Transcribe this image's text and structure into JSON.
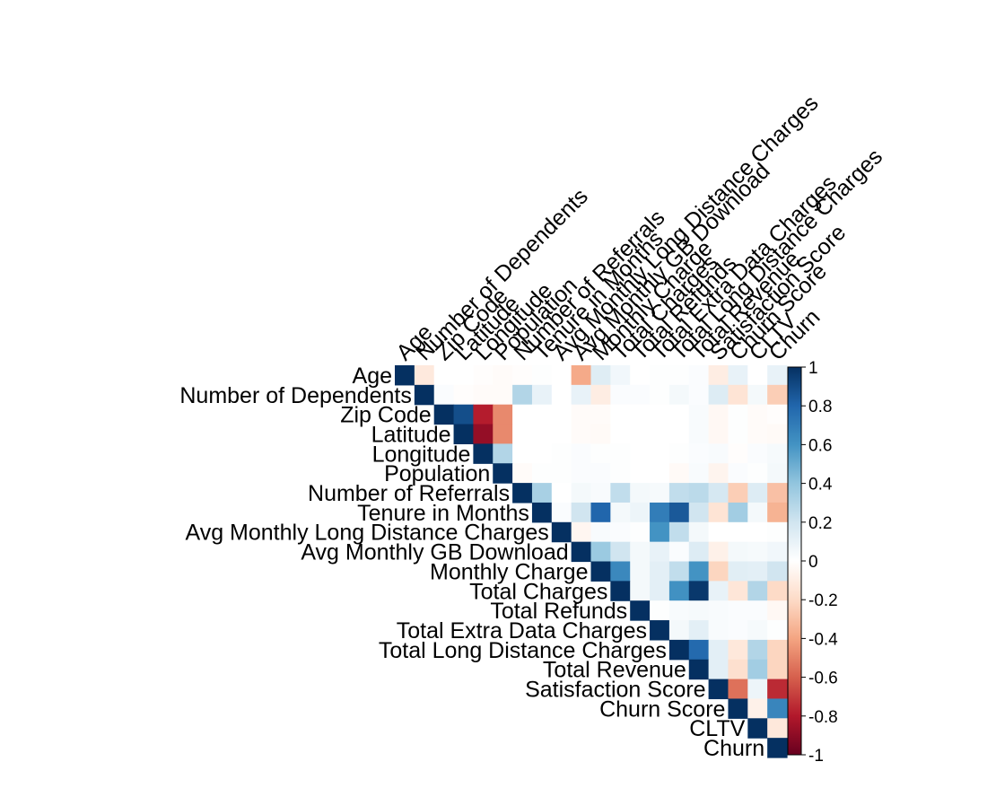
{
  "chart_data": {
    "type": "heatmap",
    "layout": "upper-triangle correlation matrix",
    "labels": [
      "Age",
      "Number of Dependents",
      "Zip Code",
      "Latitude",
      "Longitude",
      "Population",
      "Number of Referrals",
      "Tenure in Months",
      "Avg Monthly Long Distance Charges",
      "Avg Monthly GB Download",
      "Monthly Charge",
      "Total Charges",
      "Total Refunds",
      "Total Extra Data Charges",
      "Total Long Distance Charges",
      "Total Revenue",
      "Satisfaction Score",
      "Churn Score",
      "CLTV",
      "Churn"
    ],
    "matrix": [
      [
        1,
        -0.12,
        0,
        0,
        -0.01,
        -0.02,
        -0.01,
        0.01,
        0,
        -0.38,
        0.14,
        0.06,
        0,
        0.01,
        0.01,
        0.02,
        -0.1,
        0.1,
        0,
        0.1
      ],
      [
        null,
        1,
        0.02,
        -0.01,
        -0.02,
        -0.02,
        0.3,
        0.1,
        0,
        0.1,
        -0.1,
        0.02,
        0.02,
        0.01,
        0.05,
        0.02,
        0.15,
        -0.15,
        0.05,
        -0.25
      ],
      [
        null,
        null,
        1,
        0.89,
        -0.79,
        -0.48,
        0,
        0,
        0,
        -0.02,
        -0.02,
        0,
        0,
        0,
        0,
        0.03,
        -0.04,
        0.01,
        -0.02,
        -0.01
      ],
      [
        null,
        null,
        null,
        1,
        -0.88,
        -0.48,
        0,
        0,
        0,
        -0.02,
        -0.03,
        0,
        0,
        0,
        0,
        0.03,
        -0.04,
        0.01,
        -0.02,
        -0.03
      ],
      [
        null,
        null,
        null,
        null,
        1,
        0.3,
        0,
        0,
        0.01,
        0.02,
        0.01,
        0.01,
        0,
        0,
        0.01,
        0.02,
        0.03,
        -0.01,
        0.02,
        0.04
      ],
      [
        null,
        null,
        null,
        null,
        null,
        1,
        -0.02,
        0.01,
        0.01,
        0.02,
        0.02,
        0.01,
        0,
        0,
        -0.03,
        0.03,
        -0.06,
        0.02,
        0.01,
        0.05
      ],
      [
        null,
        null,
        null,
        null,
        null,
        null,
        1,
        0.33,
        0,
        0.05,
        0.03,
        0.25,
        0.05,
        0.04,
        0.25,
        0.27,
        0.18,
        -0.25,
        0.15,
        -0.3
      ],
      [
        null,
        null,
        null,
        null,
        null,
        null,
        null,
        1,
        0.02,
        0.2,
        0.8,
        0.05,
        0.08,
        0.7,
        0.85,
        0.2,
        -0.15,
        0.35,
        0.05,
        -0.35
      ],
      [
        null,
        null,
        null,
        null,
        null,
        null,
        null,
        null,
        1,
        -0.05,
        0.03,
        0.02,
        0.01,
        0.6,
        0.25,
        0.05,
        0,
        0,
        0,
        0.01
      ],
      [
        null,
        null,
        null,
        null,
        null,
        null,
        null,
        null,
        null,
        1,
        0.37,
        0.2,
        0.05,
        0.1,
        0.02,
        0.15,
        -0.08,
        0.05,
        0.04,
        0.06
      ],
      [
        null,
        null,
        null,
        null,
        null,
        null,
        null,
        null,
        null,
        null,
        1,
        0.65,
        0.05,
        0.12,
        0.25,
        0.6,
        -0.22,
        0.13,
        0.12,
        0.2
      ],
      [
        null,
        null,
        null,
        null,
        null,
        null,
        null,
        null,
        null,
        null,
        null,
        1,
        0.05,
        0.12,
        0.61,
        0.97,
        0.1,
        -0.14,
        0.3,
        -0.2
      ],
      [
        null,
        null,
        null,
        null,
        null,
        null,
        null,
        null,
        null,
        null,
        null,
        null,
        1,
        0.01,
        0.03,
        0.04,
        0.03,
        0.02,
        0.02,
        -0.04
      ],
      [
        null,
        null,
        null,
        null,
        null,
        null,
        null,
        null,
        null,
        null,
        null,
        null,
        null,
        1,
        0.05,
        0.12,
        0.03,
        0.02,
        0.04,
        0.01
      ],
      [
        null,
        null,
        null,
        null,
        null,
        null,
        null,
        null,
        null,
        null,
        null,
        null,
        null,
        null,
        1,
        0.78,
        0.12,
        -0.13,
        0.3,
        -0.22
      ],
      [
        null,
        null,
        null,
        null,
        null,
        null,
        null,
        null,
        null,
        null,
        null,
        null,
        null,
        null,
        null,
        1,
        0.12,
        -0.17,
        0.35,
        -0.22
      ],
      [
        null,
        null,
        null,
        null,
        null,
        null,
        null,
        null,
        null,
        null,
        null,
        null,
        null,
        null,
        null,
        null,
        1,
        -0.55,
        0.08,
        -0.75
      ],
      [
        null,
        null,
        null,
        null,
        null,
        null,
        null,
        null,
        null,
        null,
        null,
        null,
        null,
        null,
        null,
        null,
        null,
        1,
        -0.08,
        0.66
      ],
      [
        null,
        null,
        null,
        null,
        null,
        null,
        null,
        null,
        null,
        null,
        null,
        null,
        null,
        null,
        null,
        null,
        null,
        null,
        1,
        -0.13
      ],
      [
        null,
        null,
        null,
        null,
        null,
        null,
        null,
        null,
        null,
        null,
        null,
        null,
        null,
        null,
        null,
        null,
        null,
        null,
        null,
        1
      ]
    ],
    "color_scale": {
      "min": -1,
      "max": 1,
      "stops": [
        "#67001f",
        "#b2182b",
        "#d6604d",
        "#f4a582",
        "#fddbc7",
        "#ffffff",
        "#d1e5f0",
        "#92c5de",
        "#4393c3",
        "#2166ac",
        "#053061"
      ],
      "ticks": [
        "-1",
        "-0.8",
        "-0.6",
        "-0.4",
        "-0.2",
        "0",
        "0.2",
        "0.4",
        "0.6",
        "0.8",
        "1"
      ]
    }
  }
}
